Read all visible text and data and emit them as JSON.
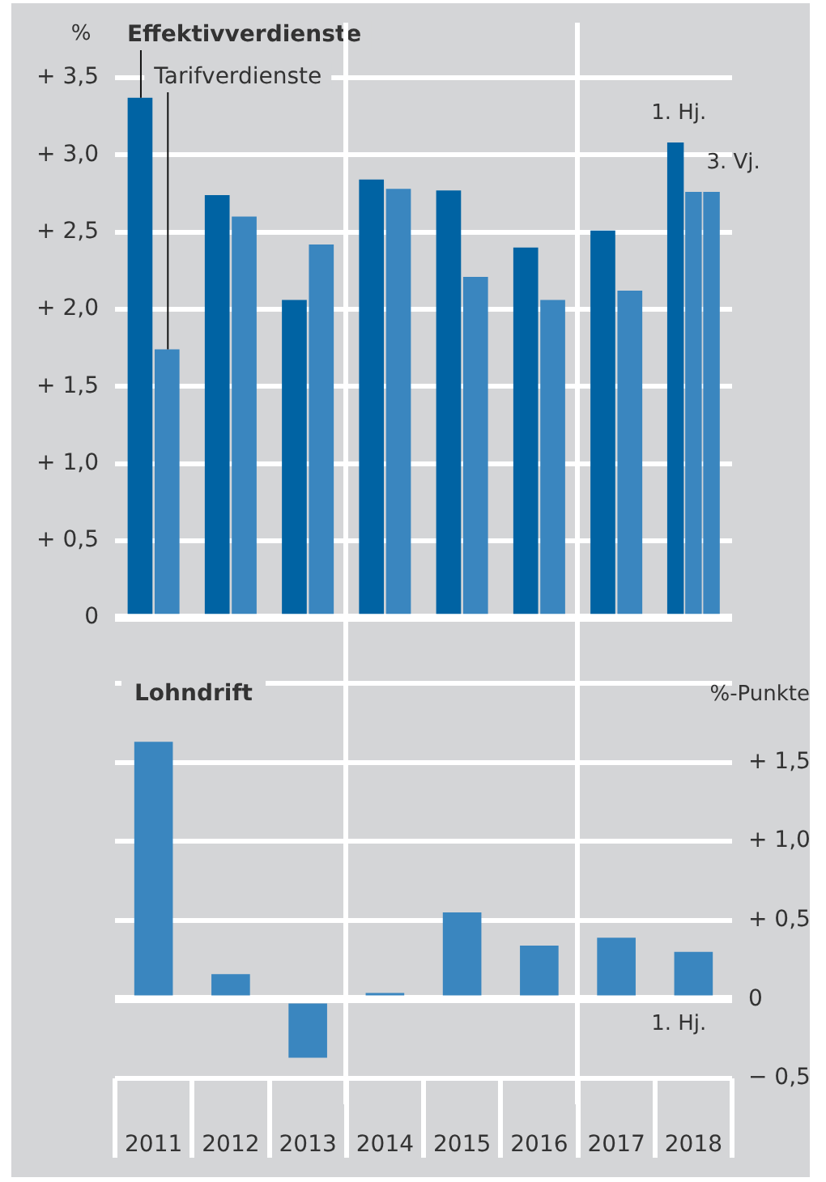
{
  "chart_data": [
    {
      "type": "bar",
      "ylabel": "%",
      "categories": [
        "2011",
        "2012",
        "2013",
        "2014",
        "2015",
        "2016",
        "2017",
        "2018"
      ],
      "series": [
        {
          "name": "Effektivverdienste",
          "color": "#0063a3",
          "values": [
            3.37,
            2.74,
            2.06,
            2.84,
            2.77,
            2.4,
            2.51,
            3.08
          ]
        },
        {
          "name": "Tarifverdienste",
          "color": "#3a86bf",
          "values": [
            1.74,
            2.6,
            2.42,
            2.78,
            2.21,
            2.06,
            2.12,
            2.76
          ]
        },
        {
          "color": "#3a86bf",
          "values": [
            null,
            null,
            null,
            null,
            null,
            null,
            null,
            2.76
          ]
        }
      ],
      "ylim": [
        0,
        3.5
      ],
      "yticks": [
        {
          "value": 0,
          "label": "0"
        },
        {
          "value": 0.5,
          "label": "+ 0,5"
        },
        {
          "value": 1,
          "label": "+ 1,0"
        },
        {
          "value": 1.5,
          "label": "+ 1,5"
        },
        {
          "value": 2,
          "label": "+ 2,0"
        },
        {
          "value": 2.5,
          "label": "+ 2,5"
        },
        {
          "value": 3,
          "label": "+ 3,0"
        },
        {
          "value": 3.5,
          "label": "+ 3,5"
        }
      ],
      "grid": "y",
      "tick_labels": "y",
      "annotations": [
        "1. Hj.",
        "3. Vj."
      ]
    },
    {
      "type": "bar",
      "title": "Lohndrift",
      "ylabel": "%-Punkte",
      "categories": [
        "2011",
        "2012",
        "2013",
        "2014",
        "2015",
        "2016",
        "2017",
        "2018"
      ],
      "values": [
        1.63,
        0.16,
        -0.37,
        0.04,
        0.55,
        0.34,
        0.39,
        0.3
      ],
      "color": "#3a86bf",
      "ylim": [
        -0.5,
        2
      ],
      "yticks": [
        {
          "value": -0.5,
          "label": "− 0,5"
        },
        {
          "value": 0,
          "label": "0"
        },
        {
          "value": 0.5,
          "label": "+ 0,5"
        },
        {
          "value": 1,
          "label": "+ 1,0"
        },
        {
          "value": 1.5,
          "label": "+ 1,5"
        },
        {
          "value": 2,
          "label": null
        }
      ],
      "grid": "y",
      "annotations": [
        "1. Hj."
      ]
    }
  ]
}
